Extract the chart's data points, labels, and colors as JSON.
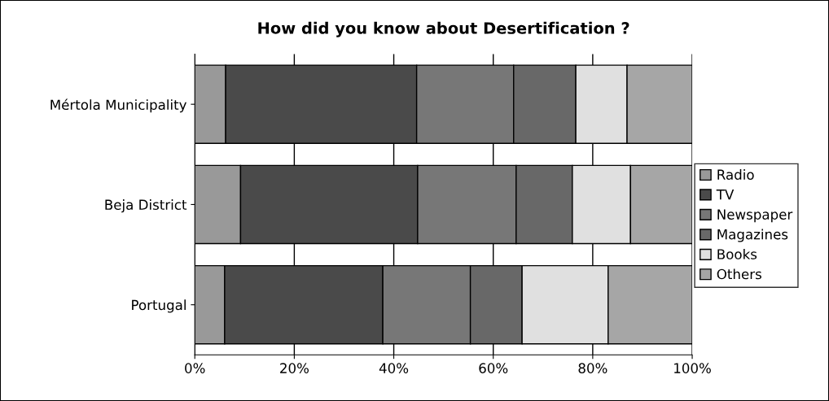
{
  "chart_data": {
    "type": "bar",
    "orientation": "horizontal",
    "stacked": true,
    "title": "How did you know about Desertification ?",
    "categories": [
      "Mértola Municipality",
      "Beja District",
      "Portugal"
    ],
    "series": [
      {
        "name": "Radio",
        "color": "#999999",
        "values": [
          6.2,
          9.2,
          6.0
        ]
      },
      {
        "name": "TV",
        "color": "#4a4a4a",
        "values": [
          38.4,
          35.6,
          31.8
        ]
      },
      {
        "name": "Newspaper",
        "color": "#777777",
        "values": [
          19.5,
          19.8,
          17.6
        ]
      },
      {
        "name": "Magazines",
        "color": "#686868",
        "values": [
          12.5,
          11.3,
          10.4
        ]
      },
      {
        "name": "Books",
        "color": "#e0e0e0",
        "values": [
          10.3,
          11.7,
          17.3
        ]
      },
      {
        "name": "Others",
        "color": "#a6a6a6",
        "values": [
          13.1,
          12.4,
          16.9
        ]
      }
    ],
    "xlim": [
      0,
      100
    ],
    "xticks": [
      {
        "value": 0,
        "label": "0%"
      },
      {
        "value": 20,
        "label": "20%"
      },
      {
        "value": 40,
        "label": "40%"
      },
      {
        "value": 60,
        "label": "60%"
      },
      {
        "value": 80,
        "label": "80%"
      },
      {
        "value": 100,
        "label": "100%"
      }
    ],
    "grid": "x",
    "legend": "right"
  }
}
